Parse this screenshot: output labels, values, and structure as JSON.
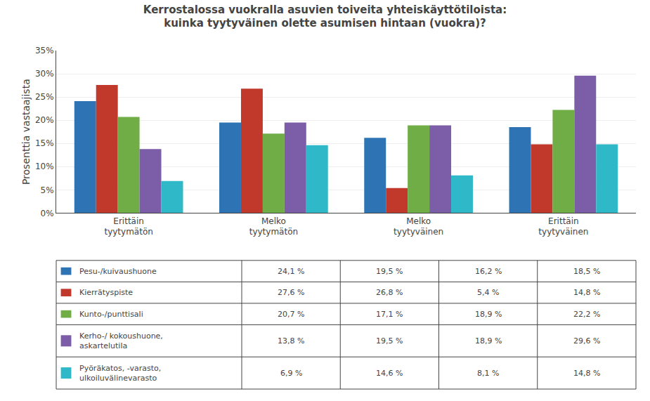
{
  "chart_data": {
    "type": "bar",
    "title": "Kerrostalossa vuokralla asuvien toiveita yhteiskäyttötiloista:\nkuinka tyytyväinen olette asumisen hintaan (vuokra)?",
    "y_label": "Prosenttia vastaajista",
    "categories": [
      "Erittäin\ntyytymätön",
      "Melko\ntyytymätön",
      "Melko\ntyytyväinen",
      "Erittäin\ntyytyväinen"
    ],
    "series": [
      {
        "name": "Pesu-/kuivaushuone",
        "color": "#2E74B5",
        "values": [
          24.1,
          19.5,
          16.2,
          18.5
        ],
        "value_labels": [
          "24,1 %",
          "19,5 %",
          "16,2 %",
          "18,5 %"
        ]
      },
      {
        "name": "Kierrätyspiste",
        "color": "#C0392B",
        "values": [
          27.6,
          26.8,
          5.4,
          14.8
        ],
        "value_labels": [
          "27,6 %",
          "26,8 %",
          "5,4 %",
          "14,8 %"
        ]
      },
      {
        "name": "Kunto-/punttisali",
        "color": "#70AD47",
        "values": [
          20.7,
          17.1,
          18.9,
          22.2
        ],
        "value_labels": [
          "20,7 %",
          "17,1 %",
          "18,9 %",
          "22,2 %"
        ]
      },
      {
        "name": "Kerho-/ kokoushuone,\naskartelutila",
        "color": "#7B5EA7",
        "values": [
          13.8,
          19.5,
          18.9,
          29.6
        ],
        "value_labels": [
          "13,8 %",
          "19,5 %",
          "18,9 %",
          "29,6 %"
        ]
      },
      {
        "name": "Pyöräkatos, -varasto,\nulkoiluvälinevarasto",
        "color": "#2EB8C8",
        "values": [
          6.9,
          14.6,
          8.1,
          14.8
        ],
        "value_labels": [
          "6,9 %",
          "14,6 %",
          "8,1 %",
          "14,8 %"
        ]
      }
    ],
    "ylim": [
      0,
      35
    ],
    "yticks": [
      {
        "value": 0,
        "label": "0%"
      },
      {
        "value": 5,
        "label": "5%"
      },
      {
        "value": 10,
        "label": "10%"
      },
      {
        "value": 15,
        "label": "15%"
      },
      {
        "value": 20,
        "label": "20%"
      },
      {
        "value": 25,
        "label": "25%"
      },
      {
        "value": 30,
        "label": "30%"
      },
      {
        "value": 35,
        "label": "35%"
      }
    ],
    "grid": true
  }
}
